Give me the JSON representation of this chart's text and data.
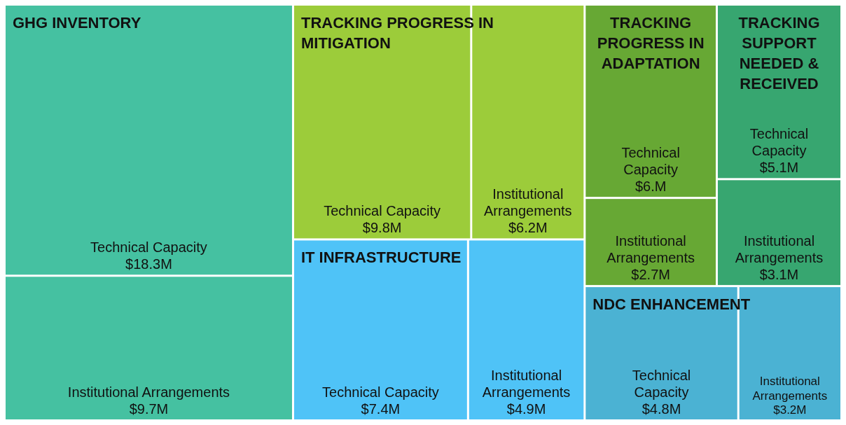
{
  "chart_data": {
    "type": "other",
    "categories": [
      "Technical Capacity",
      "Institutional Arrangements"
    ],
    "series": [
      {
        "name": "GHG INVENTORY",
        "color": "#45c1a1",
        "values": [
          18.3,
          9.7
        ],
        "value_labels": [
          "$18.3M",
          "$9.7M"
        ]
      },
      {
        "name": "TRACKING PROGRESS IN MITIGATION",
        "color": "#9ccc3a",
        "values": [
          9.8,
          6.2
        ],
        "value_labels": [
          "$9.8M",
          "$6.2M"
        ]
      },
      {
        "name": "IT INFRASTRUCTURE",
        "color": "#4fc3f7",
        "values": [
          7.4,
          4.9
        ],
        "value_labels": [
          "$7.4M",
          "$4.9M"
        ]
      },
      {
        "name": "TRACKING PROGRESS IN ADAPTATION",
        "color": "#67a834",
        "values": [
          6,
          2.7
        ],
        "value_labels": [
          "$6.M",
          "$2.7M"
        ]
      },
      {
        "name": "TRACKING SUPPORT NEEDED & RECEIVED",
        "color": "#37a670",
        "values": [
          5.1,
          3.1
        ],
        "value_labels": [
          "$5.1M",
          "$3.1M"
        ]
      },
      {
        "name": "NDC ENHANCEMENT",
        "color": "#4bb2d3",
        "values": [
          4.8,
          3.2
        ],
        "value_labels": [
          "$4.8M",
          "$3.2M"
        ]
      }
    ]
  }
}
